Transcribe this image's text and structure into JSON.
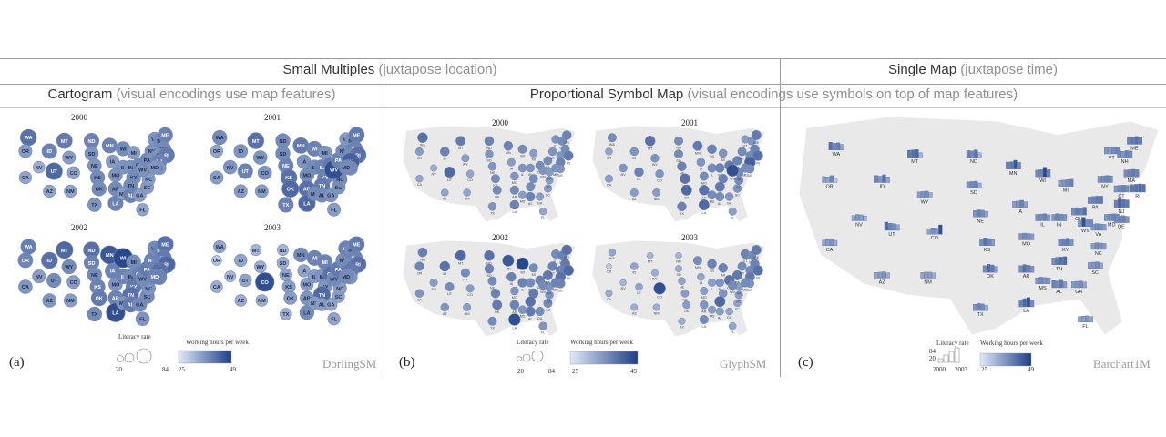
{
  "headers": {
    "small_multiples": {
      "main": "Small Multiples",
      "sub": "(juxtapose location)"
    },
    "single_map": {
      "main": "Single Map",
      "sub": "(juxtapose time)"
    },
    "cartogram": {
      "main": "Cartogram",
      "sub": "(visual encodings use map features)"
    },
    "psm": {
      "main": "Proportional Symbol Map",
      "sub": "(visual encodings use symbols on top of map features)"
    }
  },
  "panels": {
    "a": {
      "label": "(a)",
      "technique": "DorlingSM",
      "years": [
        "2000",
        "2001",
        "2002",
        "2003"
      ]
    },
    "b": {
      "label": "(b)",
      "technique": "GlyphSM",
      "years": [
        "2000",
        "2001",
        "2002",
        "2003"
      ]
    },
    "c": {
      "label": "(c)",
      "technique": "Barchart1M"
    }
  },
  "legend": {
    "literacy_title": "Literacy rate",
    "literacy_min": "20",
    "literacy_max": "84",
    "hours_title": "Working hours per week",
    "hours_min": "25",
    "hours_max": "49",
    "bar_axis_top": "84",
    "bar_axis_bottom": "20",
    "bar_year_start": "2000",
    "bar_year_end": "2003"
  },
  "colors": {
    "light": "#dfe9f6",
    "dark": "#1f3e86",
    "map_fill": "#e9e9ea",
    "rule": "#9a9a9a"
  },
  "states": [
    {
      "abbr": "WA",
      "v": [
        70,
        55,
        62,
        40
      ]
    },
    {
      "abbr": "OR",
      "v": [
        45,
        40,
        58,
        20
      ]
    },
    {
      "abbr": "CA",
      "v": [
        40,
        45,
        50,
        35
      ]
    },
    {
      "abbr": "NV",
      "v": [
        35,
        50,
        45,
        30
      ]
    },
    {
      "abbr": "ID",
      "v": [
        60,
        50,
        70,
        40
      ]
    },
    {
      "abbr": "UT",
      "v": [
        75,
        60,
        55,
        40
      ]
    },
    {
      "abbr": "AZ",
      "v": [
        40,
        45,
        50,
        35
      ]
    },
    {
      "abbr": "MT",
      "v": [
        65,
        70,
        75,
        30
      ]
    },
    {
      "abbr": "WY",
      "v": [
        45,
        50,
        55,
        35
      ]
    },
    {
      "abbr": "CO",
      "v": [
        40,
        50,
        45,
        90
      ]
    },
    {
      "abbr": "NM",
      "v": [
        40,
        45,
        45,
        35
      ]
    },
    {
      "abbr": "ND",
      "v": [
        60,
        55,
        70,
        30
      ]
    },
    {
      "abbr": "SD",
      "v": [
        50,
        55,
        60,
        35
      ]
    },
    {
      "abbr": "NE",
      "v": [
        50,
        60,
        55,
        40
      ]
    },
    {
      "abbr": "KS",
      "v": [
        55,
        70,
        60,
        45
      ]
    },
    {
      "abbr": "OK",
      "v": [
        55,
        75,
        65,
        45
      ]
    },
    {
      "abbr": "TX",
      "v": [
        50,
        60,
        55,
        35
      ]
    },
    {
      "abbr": "MN",
      "v": [
        60,
        65,
        85,
        55
      ]
    },
    {
      "abbr": "IA",
      "v": [
        45,
        50,
        60,
        40
      ]
    },
    {
      "abbr": "MO",
      "v": [
        50,
        55,
        50,
        45
      ]
    },
    {
      "abbr": "AR",
      "v": [
        55,
        70,
        60,
        50
      ]
    },
    {
      "abbr": "LA",
      "v": [
        60,
        75,
        90,
        55
      ]
    },
    {
      "abbr": "WI",
      "v": [
        55,
        60,
        95,
        60
      ]
    },
    {
      "abbr": "IL",
      "v": [
        50,
        55,
        60,
        45
      ]
    },
    {
      "abbr": "MI",
      "v": [
        45,
        50,
        55,
        60
      ]
    },
    {
      "abbr": "IN",
      "v": [
        50,
        60,
        55,
        50
      ]
    },
    {
      "abbr": "OH",
      "v": [
        55,
        65,
        60,
        70
      ]
    },
    {
      "abbr": "KY",
      "v": [
        55,
        60,
        65,
        50
      ]
    },
    {
      "abbr": "TN",
      "v": [
        55,
        65,
        70,
        75
      ]
    },
    {
      "abbr": "MS",
      "v": [
        45,
        55,
        50,
        45
      ]
    },
    {
      "abbr": "AL",
      "v": [
        60,
        55,
        65,
        45
      ]
    },
    {
      "abbr": "GA",
      "v": [
        45,
        50,
        55,
        40
      ]
    },
    {
      "abbr": "FL",
      "v": [
        40,
        45,
        50,
        40
      ]
    },
    {
      "abbr": "SC",
      "v": [
        45,
        50,
        55,
        40
      ]
    },
    {
      "abbr": "NC",
      "v": [
        45,
        55,
        50,
        45
      ]
    },
    {
      "abbr": "VA",
      "v": [
        45,
        55,
        50,
        45
      ]
    },
    {
      "abbr": "WV",
      "v": [
        50,
        90,
        55,
        55
      ]
    },
    {
      "abbr": "PA",
      "v": [
        55,
        60,
        65,
        65
      ]
    },
    {
      "abbr": "NY",
      "v": [
        50,
        55,
        60,
        55
      ]
    },
    {
      "abbr": "VT",
      "v": [
        50,
        45,
        55,
        60
      ]
    },
    {
      "abbr": "NH",
      "v": [
        55,
        50,
        60,
        55
      ]
    },
    {
      "abbr": "ME",
      "v": [
        60,
        65,
        70,
        65
      ]
    },
    {
      "abbr": "MA",
      "v": [
        55,
        60,
        65,
        60
      ]
    },
    {
      "abbr": "CT",
      "v": [
        50,
        55,
        60,
        55
      ]
    },
    {
      "abbr": "RI",
      "v": [
        65,
        70,
        75,
        70
      ]
    },
    {
      "abbr": "NJ",
      "v": [
        60,
        80,
        70,
        65
      ]
    },
    {
      "abbr": "DE",
      "v": [
        50,
        55,
        60,
        50
      ]
    },
    {
      "abbr": "MD",
      "v": [
        50,
        55,
        60,
        55
      ]
    }
  ]
}
